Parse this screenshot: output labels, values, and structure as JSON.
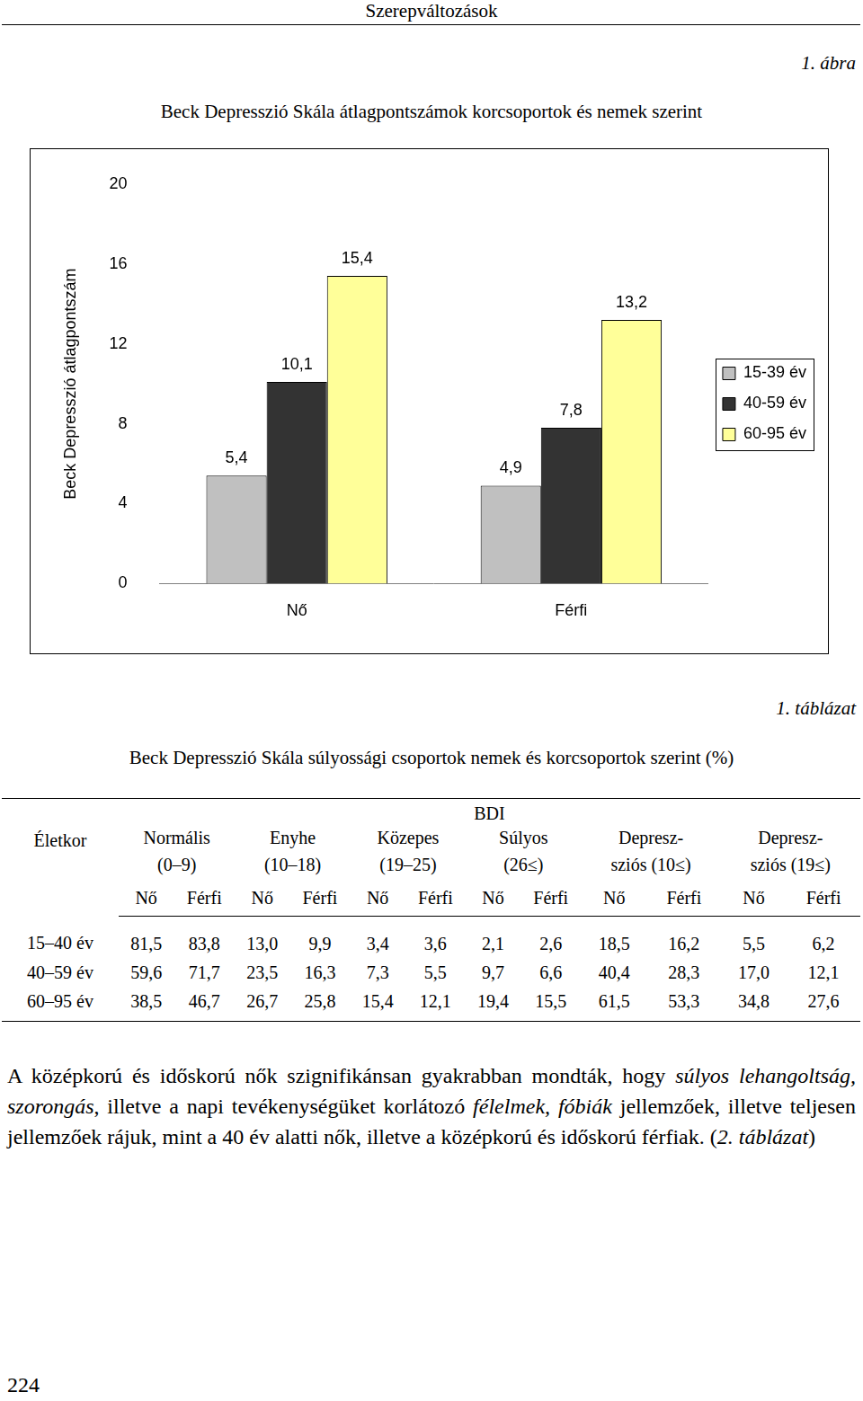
{
  "chart_data": {
    "type": "bar",
    "title": "Beck Depresszió Skála átlagpontszámok korcsoportok és nemek szerint",
    "y_label": "Beck Depresszió átlagpontszám",
    "categories": [
      "Nő",
      "Férfi"
    ],
    "series": [
      {
        "name": "15-39 év",
        "color": "#c0c0c0",
        "values": [
          5.4,
          4.9
        ],
        "value_labels": [
          "5,4",
          "4,9"
        ]
      },
      {
        "name": "40-59 év",
        "color": "#333333",
        "values": [
          10.1,
          7.8
        ],
        "value_labels": [
          "10,1",
          "7,8"
        ]
      },
      {
        "name": "60-95 év",
        "color": "#ffff99",
        "values": [
          15.4,
          13.2
        ],
        "value_labels": [
          "15,4",
          "13,2"
        ]
      }
    ],
    "ylim": [
      0,
      20
    ],
    "yticks": [
      0,
      4,
      8,
      12,
      16,
      20
    ],
    "grid": false,
    "legend": "right",
    "data_labels": true
  },
  "document": {
    "running_title": "Szerepváltozások",
    "figure_label": "1. ábra",
    "table": {
      "label": "1. táblázat",
      "title": "Beck Depresszió Skála súlyossági csoportok nemek és korcsoportok szerint (%)",
      "row_header": "Életkor",
      "group_header": "BDI",
      "columns": [
        [
          "Normális",
          "(0–9)"
        ],
        [
          "Enyhe",
          "(10–18)"
        ],
        [
          "Közepes",
          "(19–25)"
        ],
        [
          "Súlyos",
          "(26≤)"
        ],
        [
          "Depresz-",
          "sziós (10≤)"
        ],
        [
          "Depresz-",
          "sziós (19≤)"
        ]
      ],
      "subheaders": [
        "Nő",
        "Férfi"
      ],
      "rows": [
        {
          "label": "15–40 év",
          "cells": [
            "81,5",
            "83,8",
            "13,0",
            "9,9",
            "3,4",
            "3,6",
            "2,1",
            "2,6",
            "18,5",
            "16,2",
            "5,5",
            "6,2"
          ]
        },
        {
          "label": "40–59 év",
          "cells": [
            "59,6",
            "71,7",
            "23,5",
            "16,3",
            "7,3",
            "5,5",
            "9,7",
            "6,6",
            "40,4",
            "28,3",
            "17,0",
            "12,1"
          ]
        },
        {
          "label": "60–95 év",
          "cells": [
            "38,5",
            "46,7",
            "26,7",
            "25,8",
            "15,4",
            "12,1",
            "19,4",
            "15,5",
            "61,5",
            "53,3",
            "34,8",
            "27,6"
          ]
        }
      ]
    },
    "paragraph": [
      {
        "text": "A középkorú és időskorú nők szignifikánsan gyakrabban mondták, hogy ",
        "italic": false
      },
      {
        "text": "súlyos lehangoltság, szorongás",
        "italic": true
      },
      {
        "text": ", illetve a napi tevékenységüket korlátozó ",
        "italic": false
      },
      {
        "text": "félelmek, fóbiák",
        "italic": true
      },
      {
        "text": " jellemzőek, illetve teljesen jellemzőek rájuk, mint a 40 év alatti nők, illetve a középkorú és időskorú férfiak. (",
        "italic": false
      },
      {
        "text": "2. táblázat",
        "italic": true
      },
      {
        "text": ")",
        "italic": false
      }
    ],
    "page_number": "224"
  }
}
